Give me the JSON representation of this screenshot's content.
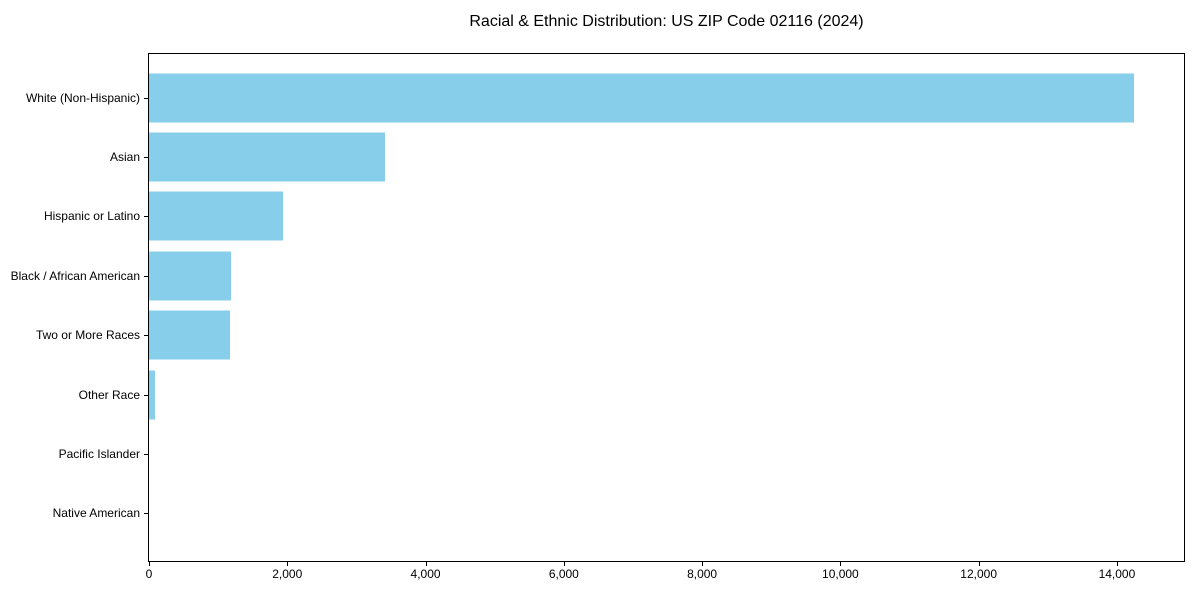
{
  "chart_data": {
    "type": "bar",
    "orientation": "horizontal",
    "title": "Racial & Ethnic Distribution: US ZIP Code 02116 (2024)",
    "xlabel": "",
    "ylabel": "",
    "grid": false,
    "legend_position": "none",
    "bar_color": "#87ceeb",
    "sort_order": "descending",
    "xlim": [
      0,
      14970
    ],
    "categories": [
      "White (Non-Hispanic)",
      "Asian",
      "Hispanic or Latino",
      "Black / African American",
      "Two or More Races",
      "Other Race",
      "Pacific Islander",
      "Native American"
    ],
    "values": [
      14250,
      3420,
      1935,
      1185,
      1170,
      90,
      0,
      0
    ],
    "xticks": [
      {
        "value": 0,
        "label": "0"
      },
      {
        "value": 2000,
        "label": "2,000"
      },
      {
        "value": 4000,
        "label": "4,000"
      },
      {
        "value": 6000,
        "label": "6,000"
      },
      {
        "value": 8000,
        "label": "8,000"
      },
      {
        "value": 10000,
        "label": "10,000"
      },
      {
        "value": 12000,
        "label": "12,000"
      },
      {
        "value": 14000,
        "label": "14,000"
      }
    ]
  }
}
